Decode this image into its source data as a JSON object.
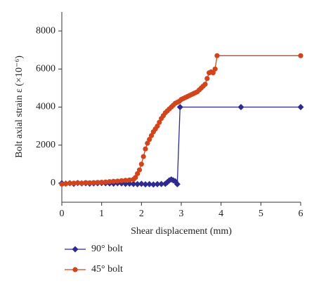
{
  "chart_data": {
    "type": "line",
    "xlabel": "Shear displacement (mm)",
    "ylabel": "Bolt axial strain ε (×10⁻⁶)",
    "xlim": [
      0,
      6
    ],
    "xticks": [
      0,
      1,
      2,
      3,
      4,
      5,
      6
    ],
    "ylim": [
      -1000,
      9000
    ],
    "yticks": [
      0,
      2000,
      4000,
      6000,
      8000
    ],
    "legend": "bottom-left",
    "series": [
      {
        "name": "90° bolt",
        "color": "#2e2a8f",
        "marker": "diamond",
        "x": [
          0,
          0.1,
          0.2,
          0.3,
          0.4,
          0.5,
          0.6,
          0.7,
          0.8,
          0.9,
          1.0,
          1.1,
          1.2,
          1.3,
          1.4,
          1.5,
          1.6,
          1.7,
          1.8,
          1.9,
          2.0,
          2.1,
          2.2,
          2.3,
          2.4,
          2.5,
          2.6,
          2.65,
          2.7,
          2.75,
          2.8,
          2.85,
          2.9,
          2.97,
          4.5,
          6.0
        ],
        "values": [
          0,
          -20,
          0,
          -30,
          10,
          -10,
          0,
          -20,
          -10,
          0,
          10,
          0,
          -10,
          -20,
          0,
          -10,
          -30,
          -20,
          -40,
          -50,
          -30,
          -60,
          -50,
          -70,
          -50,
          -40,
          -30,
          50,
          150,
          200,
          150,
          100,
          -50,
          4000,
          4000,
          4000
        ]
      },
      {
        "name": "45° bolt",
        "color": "#d2441c",
        "marker": "circle",
        "x": [
          0,
          0.1,
          0.2,
          0.3,
          0.4,
          0.5,
          0.6,
          0.7,
          0.8,
          0.9,
          1.0,
          1.1,
          1.2,
          1.3,
          1.4,
          1.5,
          1.6,
          1.7,
          1.8,
          1.85,
          1.9,
          1.95,
          2.0,
          2.05,
          2.1,
          2.15,
          2.2,
          2.25,
          2.3,
          2.35,
          2.4,
          2.45,
          2.5,
          2.55,
          2.6,
          2.65,
          2.7,
          2.75,
          2.8,
          2.85,
          2.9,
          2.95,
          3.0,
          3.05,
          3.1,
          3.15,
          3.2,
          3.25,
          3.3,
          3.35,
          3.4,
          3.45,
          3.5,
          3.55,
          3.6,
          3.65,
          3.7,
          3.75,
          3.8,
          3.85,
          3.9,
          6.0
        ],
        "values": [
          -50,
          -30,
          0,
          0,
          20,
          0,
          30,
          20,
          30,
          40,
          50,
          60,
          80,
          100,
          110,
          130,
          150,
          170,
          200,
          300,
          500,
          700,
          1000,
          1400,
          1800,
          2100,
          2300,
          2500,
          2700,
          2850,
          3000,
          3200,
          3400,
          3550,
          3700,
          3800,
          3900,
          4000,
          4100,
          4200,
          4250,
          4300,
          4400,
          4450,
          4500,
          4550,
          4600,
          4650,
          4700,
          4750,
          4800,
          4900,
          5000,
          5100,
          5200,
          5500,
          5800,
          5850,
          5800,
          6000,
          6700,
          6700
        ]
      }
    ]
  }
}
